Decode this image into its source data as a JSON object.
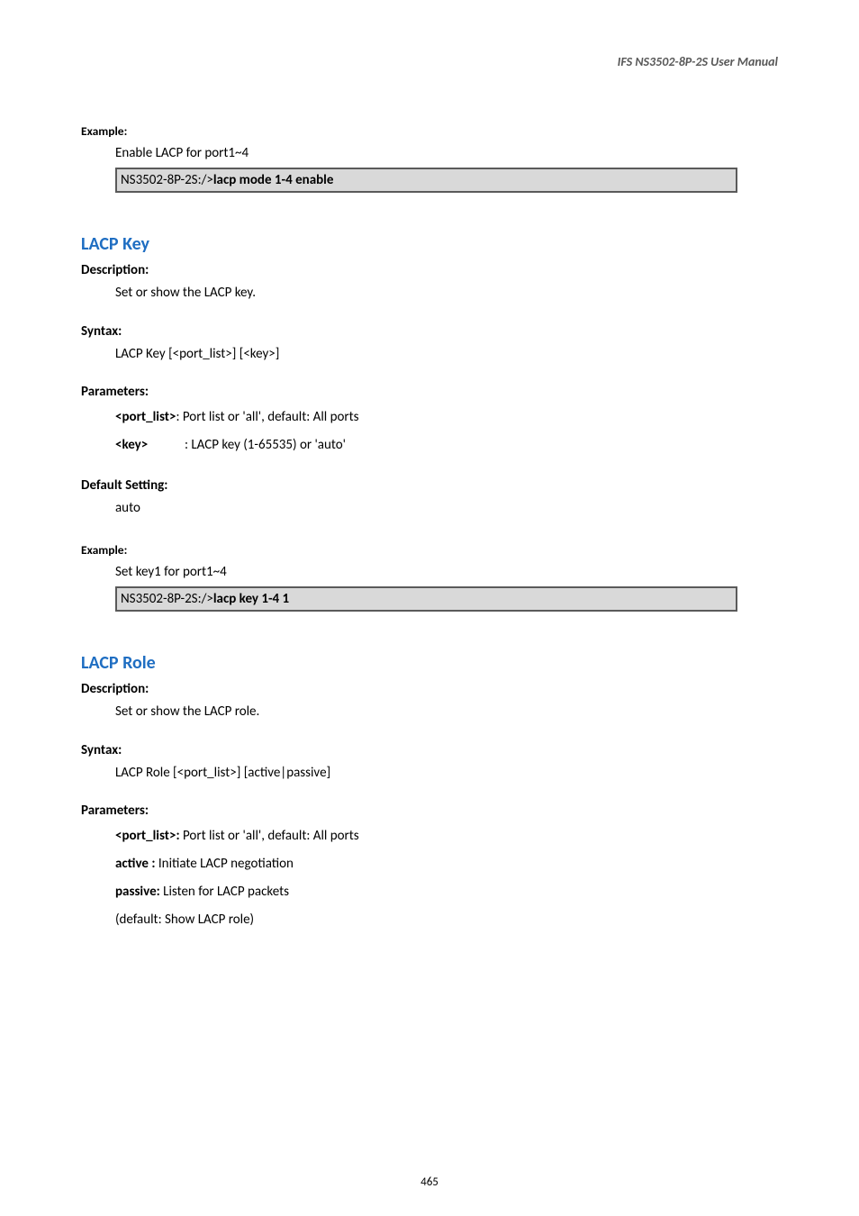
{
  "header": {
    "title": "IFS  NS3502-8P-2S  User  Manual"
  },
  "section_example1": {
    "label": "Example:",
    "body": "Enable LACP for port1~4",
    "code_prefix": "NS3502-8P-2S:/>",
    "code_cmd": "lacp mode 1-4 enable"
  },
  "section_lacp_key": {
    "title": "LACP Key",
    "description_label": "Description:",
    "description_body": "Set or show the LACP key.",
    "syntax_label": "Syntax:",
    "syntax_body": "LACP Key [<port_list>] [<key>]",
    "parameters_label": "Parameters:",
    "param1_name": "<port_list>",
    "param1_desc": ": Port list or 'all', default: All ports",
    "param2_name": "<key>",
    "param2_spacer": "            ",
    "param2_desc": ": LACP key (1-65535) or 'auto'",
    "default_label": "Default Setting:",
    "default_body": "auto",
    "example_label": "Example:",
    "example_body": "Set key1 for port1~4",
    "code_prefix": "NS3502-8P-2S:/>",
    "code_cmd": "lacp key 1-4 1"
  },
  "section_lacp_role": {
    "title": "LACP Role",
    "description_label": "Description:",
    "description_body": "Set or show the LACP role.",
    "syntax_label": "Syntax:",
    "syntax_body": "LACP Role [<port_list>] [active|passive]",
    "parameters_label": "Parameters:",
    "param1_name": "<port_list>:",
    "param1_desc": " Port list or 'all', default: All ports",
    "param2_name": "active :",
    "param2_desc": " Initiate LACP negotiation",
    "param3_name": "passive:",
    "param3_desc": " Listen for LACP packets",
    "param4_desc": "(default: Show LACP role)"
  },
  "footer": {
    "page_number": "465"
  }
}
